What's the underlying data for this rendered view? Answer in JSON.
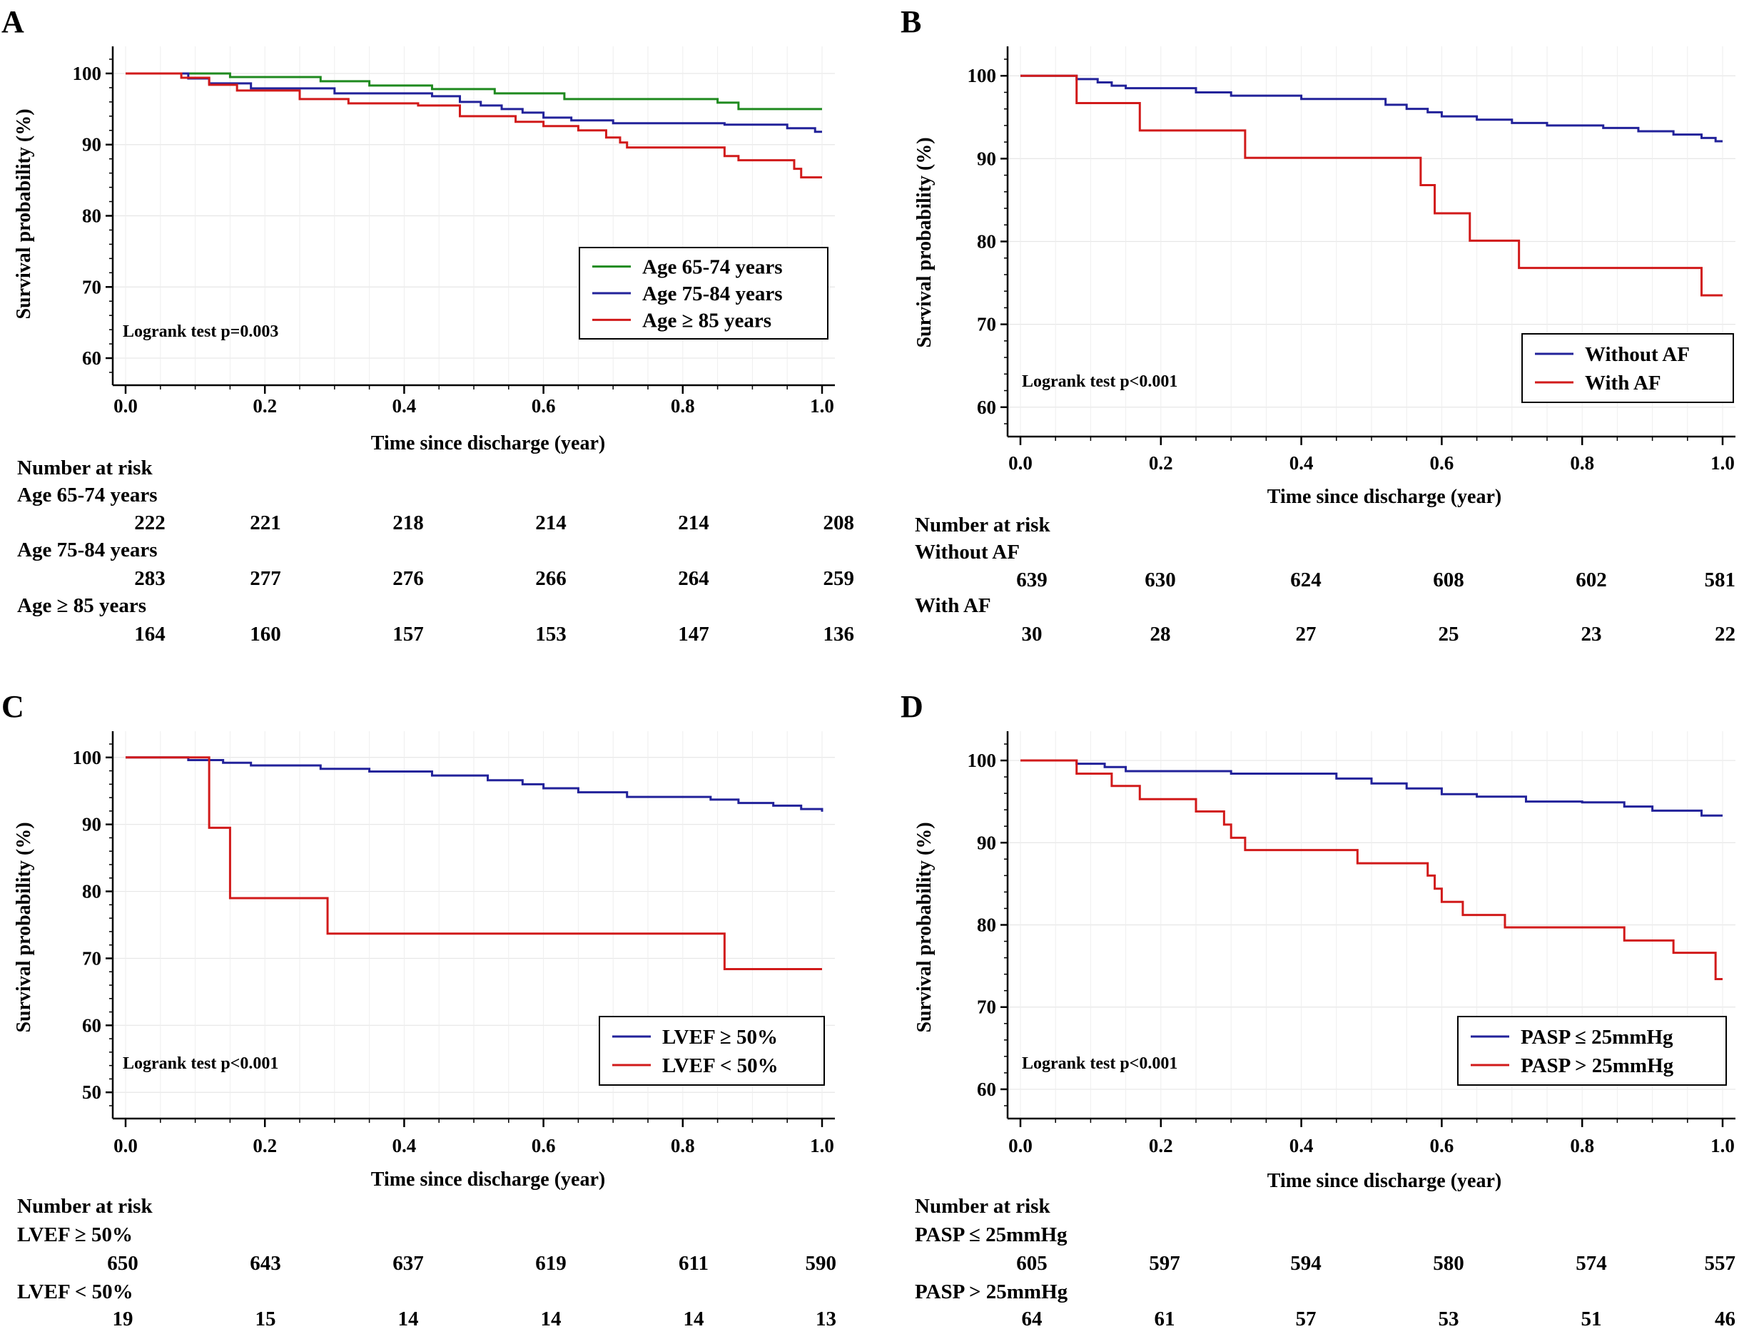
{
  "figure": {
    "xlabel_ticks": [
      "0.0",
      "0.2",
      "0.4",
      "0.6",
      "0.8",
      "1.0"
    ],
    "risk_header": "Number at risk"
  },
  "chart_data": [
    {
      "panel": "A",
      "type": "line",
      "step": true,
      "xlabel": "Time since discharge (year)",
      "ylabel": "Survival probability (%)",
      "xlim": [
        0,
        1
      ],
      "ylim": [
        58,
        102
      ],
      "yticks": [
        60,
        70,
        80,
        90,
        100
      ],
      "xticks": [
        0,
        0.2,
        0.4,
        0.6,
        0.8,
        1.0
      ],
      "annotation": "Logrank test p=0.003",
      "legend_position": "middle-right",
      "series": [
        {
          "name": "Age 65-74 years",
          "color": "#1f8a1f",
          "x": [
            0,
            0.15,
            0.28,
            0.35,
            0.44,
            0.53,
            0.63,
            0.85,
            0.88,
            1.0
          ],
          "y": [
            100,
            99.5,
            98.9,
            98.3,
            97.8,
            97.2,
            96.4,
            95.9,
            95.0,
            95.0
          ]
        },
        {
          "name": "Age 75-84 years",
          "color": "#22229a",
          "x": [
            0,
            0.09,
            0.12,
            0.18,
            0.3,
            0.44,
            0.48,
            0.51,
            0.54,
            0.57,
            0.6,
            0.64,
            0.7,
            0.8,
            0.86,
            0.95,
            0.99,
            1.0
          ],
          "y": [
            100,
            99.3,
            98.6,
            97.9,
            97.2,
            96.8,
            96.0,
            95.5,
            95.0,
            94.5,
            93.8,
            93.4,
            93.0,
            93.0,
            92.8,
            92.3,
            91.8,
            91.8
          ]
        },
        {
          "name": "Age ≥ 85 years",
          "color": "#d11a1a",
          "x": [
            0,
            0.08,
            0.12,
            0.16,
            0.25,
            0.32,
            0.42,
            0.48,
            0.56,
            0.6,
            0.65,
            0.69,
            0.71,
            0.72,
            0.75,
            0.86,
            0.88,
            0.96,
            0.97,
            1.0
          ],
          "y": [
            100,
            99.4,
            98.4,
            97.6,
            96.4,
            95.8,
            95.5,
            94.0,
            93.2,
            92.6,
            92.0,
            91.0,
            90.3,
            89.6,
            89.6,
            88.4,
            87.8,
            86.6,
            85.4,
            85.4
          ]
        }
      ],
      "risk_table": {
        "rows": [
          {
            "label": "Age 65-74 years",
            "values": [
              "222",
              "221",
              "218",
              "214",
              "214",
              "208"
            ]
          },
          {
            "label": "Age 75-84 years",
            "values": [
              "283",
              "277",
              "276",
              "266",
              "264",
              "259"
            ]
          },
          {
            "label": "Age ≥ 85 years",
            "values": [
              "164",
              "160",
              "157",
              "153",
              "147",
              "136"
            ]
          }
        ]
      }
    },
    {
      "panel": "B",
      "type": "line",
      "step": true,
      "xlabel": "Time since  discharge (year)",
      "ylabel": "Survival probability (%)",
      "xlim": [
        0,
        1
      ],
      "ylim": [
        58,
        102
      ],
      "yticks": [
        60,
        70,
        80,
        90,
        100
      ],
      "xticks": [
        0,
        0.2,
        0.4,
        0.6,
        0.8,
        1.0
      ],
      "annotation": "Logrank test p<0.001",
      "legend_position": "lower-right",
      "series": [
        {
          "name": "Without AF",
          "color": "#22229a",
          "x": [
            0,
            0.08,
            0.11,
            0.13,
            0.15,
            0.25,
            0.3,
            0.4,
            0.52,
            0.55,
            0.58,
            0.6,
            0.65,
            0.7,
            0.75,
            0.83,
            0.88,
            0.93,
            0.97,
            0.99,
            1.0
          ],
          "y": [
            100,
            99.6,
            99.2,
            98.8,
            98.5,
            98.0,
            97.6,
            97.2,
            96.5,
            96.0,
            95.6,
            95.1,
            94.7,
            94.3,
            94.0,
            93.7,
            93.3,
            92.9,
            92.5,
            92.1,
            92.1
          ]
        },
        {
          "name": "With AF",
          "color": "#d11a1a",
          "x": [
            0,
            0.08,
            0.17,
            0.32,
            0.57,
            0.59,
            0.64,
            0.71,
            0.97,
            1.0
          ],
          "y": [
            100,
            96.7,
            93.4,
            90.1,
            86.8,
            83.4,
            80.1,
            76.8,
            73.5,
            73.5
          ]
        }
      ],
      "risk_table": {
        "rows": [
          {
            "label": "Without AF",
            "values": [
              "639",
              "630",
              "624",
              "608",
              "602",
              "581"
            ]
          },
          {
            "label": "With AF",
            "values": [
              "30",
              "28",
              "27",
              "25",
              "23",
              "22"
            ]
          }
        ]
      }
    },
    {
      "panel": "C",
      "type": "line",
      "step": true,
      "xlabel": "Time since discharge (year)",
      "ylabel": "Survival probability (%)",
      "xlim": [
        0,
        1
      ],
      "ylim": [
        48,
        102
      ],
      "yticks": [
        50,
        60,
        70,
        80,
        90,
        100
      ],
      "xticks": [
        0,
        0.2,
        0.4,
        0.6,
        0.8,
        1.0
      ],
      "annotation": "Logrank test p<0.001",
      "legend_position": "lower-right",
      "series": [
        {
          "name": "LVEF ≥ 50%",
          "color": "#22229a",
          "x": [
            0,
            0.09,
            0.14,
            0.18,
            0.28,
            0.35,
            0.44,
            0.52,
            0.57,
            0.6,
            0.65,
            0.72,
            0.84,
            0.88,
            0.93,
            0.97,
            1.0
          ],
          "y": [
            100,
            99.6,
            99.2,
            98.8,
            98.3,
            97.9,
            97.3,
            96.6,
            96.0,
            95.4,
            94.8,
            94.1,
            93.7,
            93.2,
            92.8,
            92.3,
            91.9
          ]
        },
        {
          "name": "LVEF < 50%",
          "color": "#d11a1a",
          "x": [
            0,
            0.12,
            0.15,
            0.29,
            0.86,
            1.0
          ],
          "y": [
            100,
            89.5,
            79.0,
            73.7,
            68.4,
            68.4
          ]
        }
      ],
      "risk_table": {
        "rows": [
          {
            "label": "LVEF ≥ 50%",
            "values": [
              "650",
              "643",
              "637",
              "619",
              "611",
              "590"
            ]
          },
          {
            "label": "LVEF < 50%",
            "values": [
              "19",
              "15",
              "14",
              "14",
              "14",
              "13"
            ]
          }
        ]
      }
    },
    {
      "panel": "D",
      "type": "line",
      "step": true,
      "xlabel": "Time since discharge (year)",
      "ylabel": "Survival probability (%)",
      "xlim": [
        0,
        1
      ],
      "ylim": [
        58,
        102
      ],
      "yticks": [
        60,
        70,
        80,
        90,
        100
      ],
      "xticks": [
        0,
        0.2,
        0.4,
        0.6,
        0.8,
        1.0
      ],
      "annotation": "Logrank test p<0.001",
      "legend_position": "lower-right",
      "series": [
        {
          "name": "PASP ≤ 25mmHg",
          "color": "#22229a",
          "x": [
            0,
            0.08,
            0.12,
            0.15,
            0.3,
            0.45,
            0.5,
            0.55,
            0.6,
            0.65,
            0.72,
            0.8,
            0.86,
            0.9,
            0.97,
            1.0
          ],
          "y": [
            100,
            99.6,
            99.2,
            98.7,
            98.4,
            97.8,
            97.2,
            96.6,
            95.9,
            95.6,
            95.0,
            94.9,
            94.4,
            93.9,
            93.3,
            93.3
          ]
        },
        {
          "name": "PASP > 25mmHg",
          "color": "#d11a1a",
          "x": [
            0,
            0.08,
            0.13,
            0.17,
            0.25,
            0.29,
            0.3,
            0.32,
            0.48,
            0.58,
            0.59,
            0.6,
            0.63,
            0.69,
            0.86,
            0.93,
            0.99,
            1.0
          ],
          "y": [
            100,
            98.4,
            96.9,
            95.3,
            93.8,
            92.2,
            90.6,
            89.1,
            87.5,
            86.0,
            84.4,
            82.8,
            81.2,
            79.7,
            78.1,
            76.6,
            73.4,
            73.4
          ]
        }
      ],
      "risk_table": {
        "rows": [
          {
            "label": "PASP ≤ 25mmHg",
            "values": [
              "605",
              "597",
              "594",
              "580",
              "574",
              "557"
            ]
          },
          {
            "label": "PASP > 25mmHg",
            "values": [
              "64",
              "61",
              "57",
              "53",
              "51",
              "46"
            ]
          }
        ]
      }
    }
  ]
}
